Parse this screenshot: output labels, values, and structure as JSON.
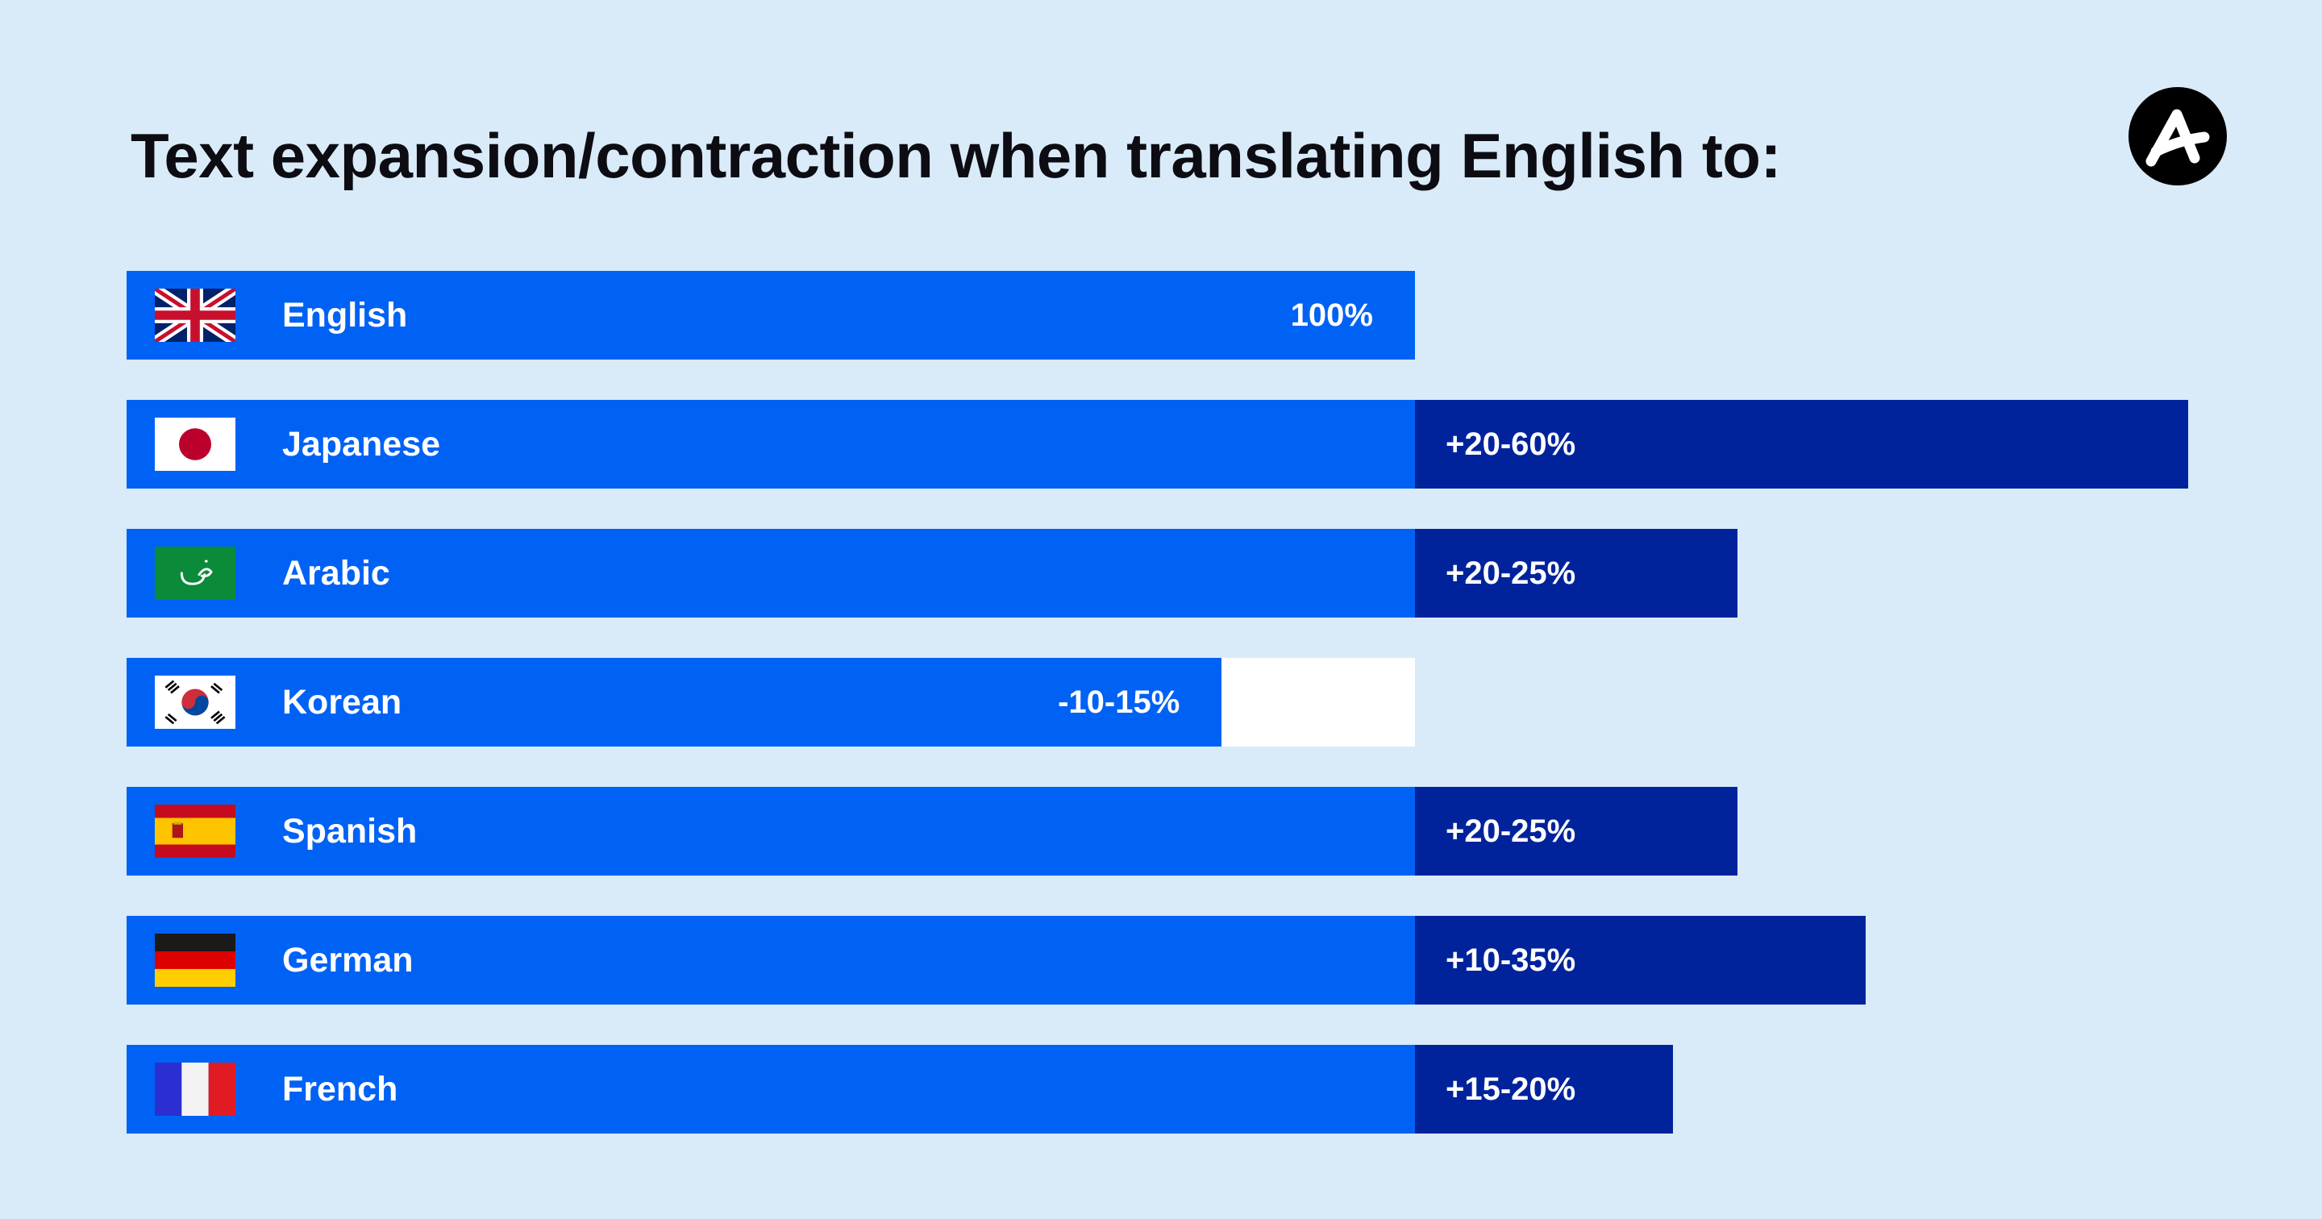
{
  "title": "Text expansion/contraction when translating English to:",
  "logo": {
    "icon": "brand-a-logo-icon"
  },
  "colors": {
    "background": "#d9ebf8",
    "base_bar": "#0062f5",
    "expansion_bar": "#00239c",
    "contraction_gap": "#ffffff",
    "text": "#ffffff"
  },
  "chart_data": {
    "type": "bar",
    "orientation": "horizontal",
    "title": "Text expansion/contraction when translating English to:",
    "baseline": 100,
    "categories": [
      "English",
      "Japanese",
      "Arabic",
      "Korean",
      "Spanish",
      "German",
      "French"
    ],
    "values_label": [
      "100%",
      "+20-60%",
      "+20-25%",
      "-10-15%",
      "+20-25%",
      "+10-35%",
      "+15-20%"
    ],
    "change_range": [
      [
        0,
        0
      ],
      [
        20,
        60
      ],
      [
        20,
        25
      ],
      [
        -15,
        -10
      ],
      [
        20,
        25
      ],
      [
        10,
        35
      ],
      [
        15,
        20
      ]
    ],
    "flags": [
      "uk-flag-icon",
      "japan-flag-icon",
      "arabic-letter-flag-icon",
      "south-korea-flag-icon",
      "spain-flag-icon",
      "germany-flag-icon",
      "france-flag-icon"
    ]
  }
}
